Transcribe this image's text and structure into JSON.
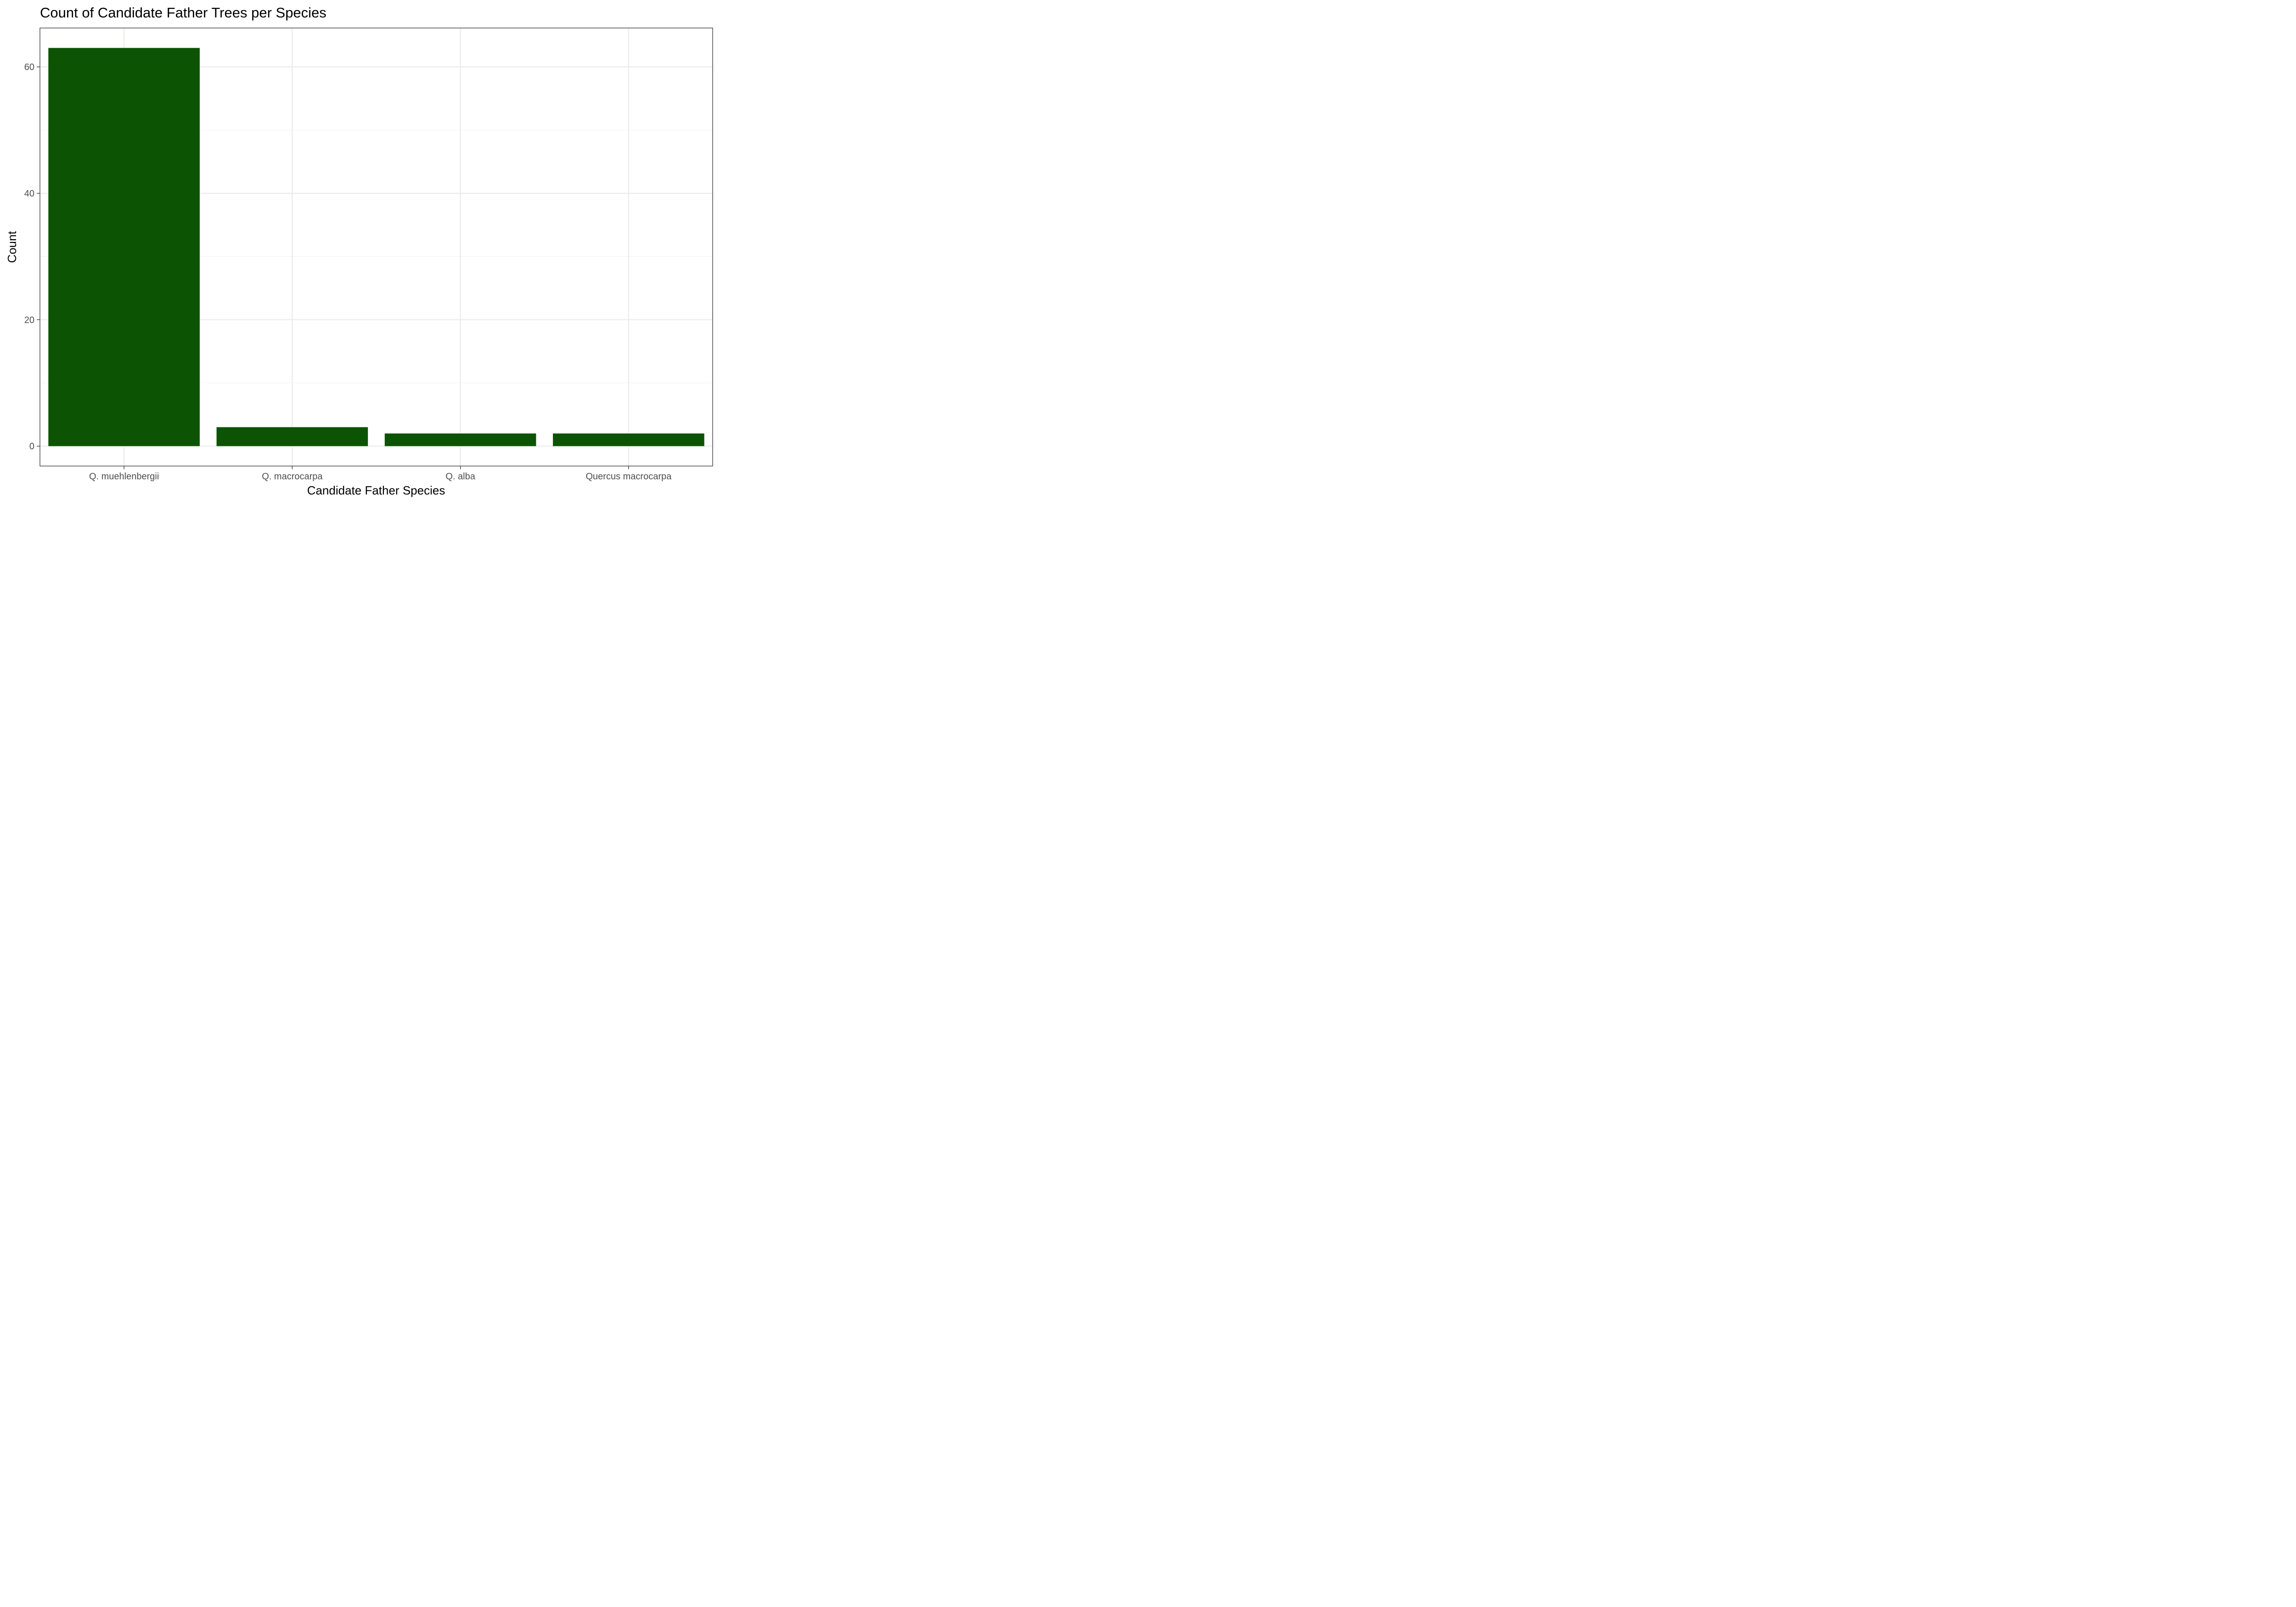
{
  "chart_data": {
    "type": "bar",
    "title": "Count of Candidate Father Trees per Species",
    "xlabel": "Candidate Father Species",
    "ylabel": "Count",
    "categories": [
      "Q. muehlenbergii",
      "Q. macrocarpa",
      "Q. alba",
      "Quercus macrocarpa"
    ],
    "values": [
      63,
      3,
      2,
      2
    ],
    "ylim": [
      -3.15,
      66.15
    ],
    "yticks": [
      0,
      20,
      40,
      60
    ],
    "yticks_labels": [
      "0",
      "20",
      "40",
      "60"
    ],
    "grid": true,
    "legend": "none"
  },
  "colors": {
    "bar_fill": "#0d5304",
    "panel_border": "#333333",
    "grid_major": "#ebebeb",
    "grid_minor": "#f2f2f2",
    "tick_text": "#4d4d4d",
    "title_text": "#000000",
    "background": "#ffffff"
  }
}
